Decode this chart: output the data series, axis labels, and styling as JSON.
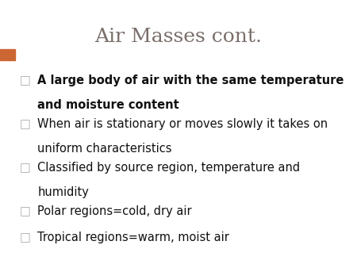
{
  "title": "Air Masses cont.",
  "title_color": "#7a6e6a",
  "title_fontsize": 18,
  "bg_color": "#ffffff",
  "accent_bar_color": "#8aafc0",
  "orange_block_color": "#cc6633",
  "bullet_color": "#aaaaaa",
  "bullet_items": [
    {
      "text_lines": [
        "A large body of air with the same temperature",
        "and moisture content"
      ],
      "bold": true
    },
    {
      "text_lines": [
        "When air is stationary or moves slowly it takes on",
        "uniform characteristics"
      ],
      "bold": false
    },
    {
      "text_lines": [
        "Classified by source region, temperature and",
        "humidity"
      ],
      "bold": false
    },
    {
      "text_lines": [
        "Polar regions=cold, dry air"
      ],
      "bold": false
    },
    {
      "text_lines": [
        "Tropical regions=warm, moist air"
      ],
      "bold": false
    }
  ],
  "item_fontsize": 10.5
}
